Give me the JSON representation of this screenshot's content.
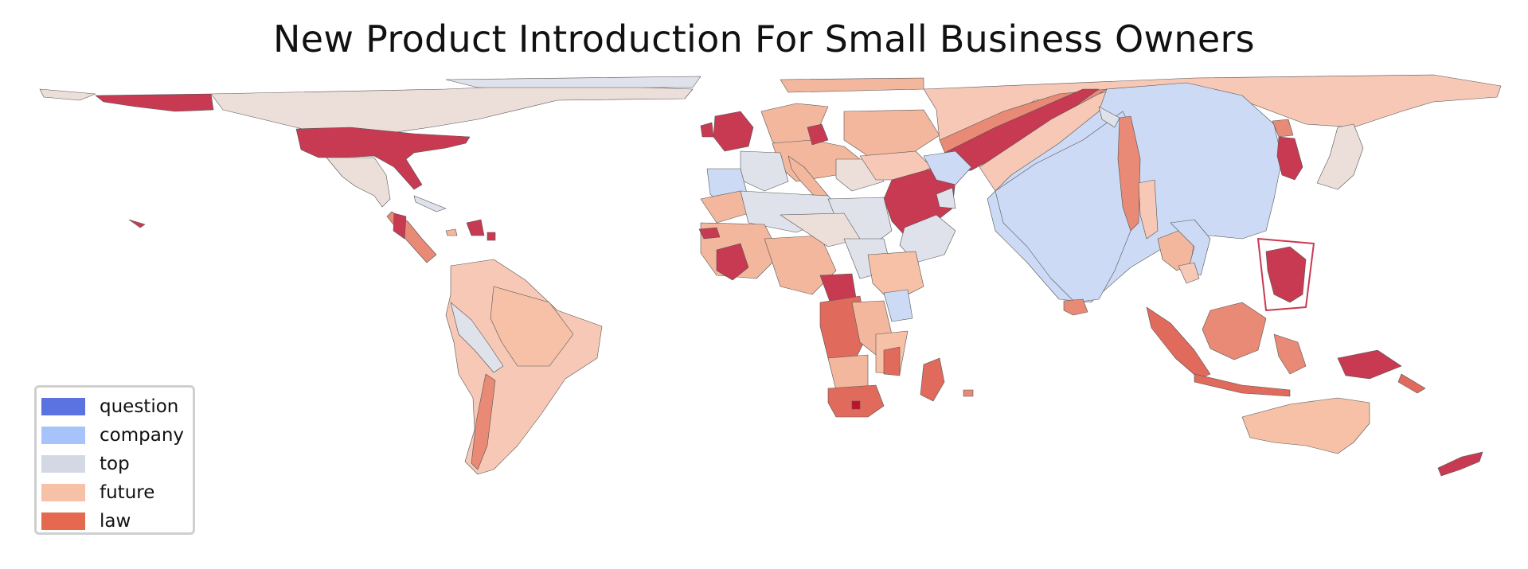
{
  "title": "New Product Introduction For Small Business Owners",
  "legend": {
    "items": [
      {
        "label": "question",
        "color": "#5a73e0"
      },
      {
        "label": "company",
        "color": "#a7c3fb"
      },
      {
        "label": "top",
        "color": "#d3d8e4"
      },
      {
        "label": "future",
        "color": "#f6c1a6"
      },
      {
        "label": "law",
        "color": "#e4694e"
      }
    ]
  },
  "map": {
    "projection": "world cartogram",
    "palette_extra": {
      "deep": "#c73a52",
      "salmon": "#e88a76",
      "light": "#ecdfd9",
      "pale_blue": "#ccdaf5"
    },
    "regions": [
      {
        "name": "Alaska",
        "category": "law",
        "color": "#c73a52"
      },
      {
        "name": "Canada",
        "category": "future",
        "color": "#ecdfd9"
      },
      {
        "name": "United States",
        "category": "law",
        "color": "#c73a52"
      },
      {
        "name": "Mexico",
        "category": "future",
        "color": "#ecdfd9"
      },
      {
        "name": "Central America",
        "category": "law",
        "color": "#e88a76"
      },
      {
        "name": "Caribbean",
        "category": "law",
        "color": "#c73a52"
      },
      {
        "name": "South America",
        "category": "future",
        "color": "#f6c8b5"
      },
      {
        "name": "Peru",
        "category": "top",
        "color": "#dfe2ea"
      },
      {
        "name": "Western Europe",
        "category": "future",
        "color": "#f3b79e"
      },
      {
        "name": "United Kingdom",
        "category": "law",
        "color": "#c73a52"
      },
      {
        "name": "Iberia",
        "category": "company",
        "color": "#ccdaf5"
      },
      {
        "name": "Russia",
        "category": "future",
        "color": "#f6c8b5"
      },
      {
        "name": "Middle East",
        "category": "law",
        "color": "#c73a52"
      },
      {
        "name": "Saudi Arabia",
        "category": "top",
        "color": "#dfe2ea"
      },
      {
        "name": "North Africa",
        "category": "top",
        "color": "#dfe2ea"
      },
      {
        "name": "West Africa",
        "category": "future",
        "color": "#f3b79e"
      },
      {
        "name": "Central Africa",
        "category": "law",
        "color": "#e06a5c"
      },
      {
        "name": "East Africa",
        "category": "future",
        "color": "#f6c1a6"
      },
      {
        "name": "Southern Africa",
        "category": "law",
        "color": "#e06a5c"
      },
      {
        "name": "Madagascar",
        "category": "law",
        "color": "#e06a5c"
      },
      {
        "name": "China",
        "category": "company",
        "color": "#ccdaf5"
      },
      {
        "name": "India",
        "category": "company",
        "color": "#ccdaf5"
      },
      {
        "name": "Central Asia",
        "category": "future",
        "color": "#f6c8b5"
      },
      {
        "name": "Korea",
        "category": "law",
        "color": "#c73a52"
      },
      {
        "name": "Japan",
        "category": "future",
        "color": "#ecdfd9"
      },
      {
        "name": "Southeast Asia",
        "category": "future",
        "color": "#f3b79e"
      },
      {
        "name": "Philippines",
        "category": "law",
        "color": "#c73a52"
      },
      {
        "name": "Indonesia",
        "category": "law",
        "color": "#e88a76"
      },
      {
        "name": "Papua New Guinea",
        "category": "law",
        "color": "#c73a52"
      },
      {
        "name": "Australia",
        "category": "future",
        "color": "#f6c1a6"
      },
      {
        "name": "New Zealand",
        "category": "law",
        "color": "#c73a52"
      }
    ]
  }
}
